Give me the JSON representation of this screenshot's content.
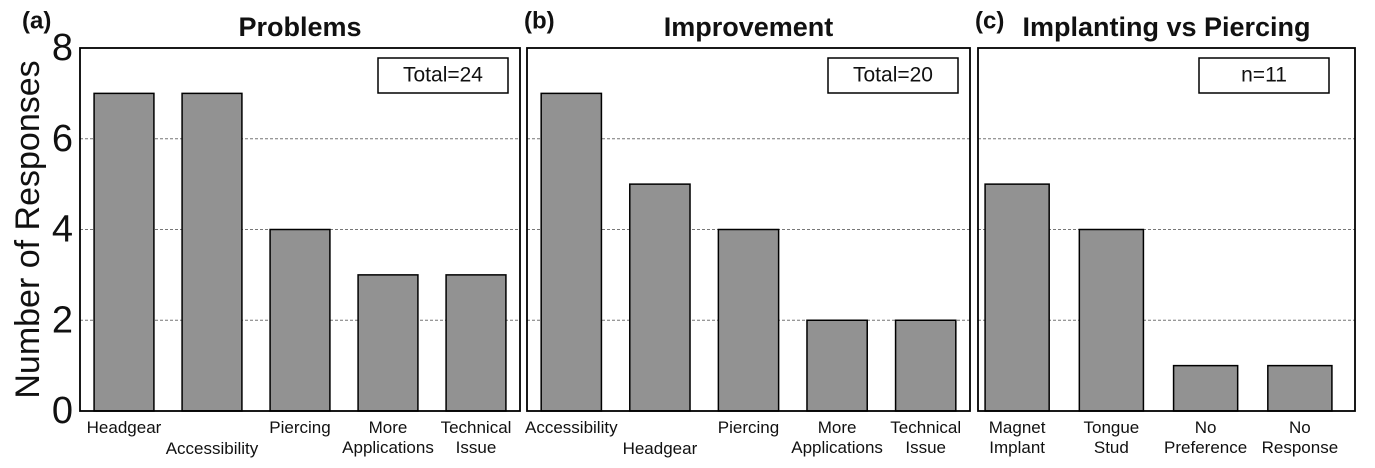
{
  "chart_data": [
    {
      "type": "bar",
      "panel_label": "(a)",
      "title": "Problems",
      "annotation": "Total=24",
      "ylabel": "Number of Responses",
      "categories": [
        "Headgear",
        "Accessibility",
        "Piercing",
        "More Applications",
        "Technical Issue"
      ],
      "values": [
        7,
        7,
        4,
        3,
        3
      ],
      "color": "#929292",
      "ylim": [
        0,
        8
      ],
      "yticks": [
        0,
        2,
        4,
        6,
        8
      ],
      "grid": true
    },
    {
      "type": "bar",
      "panel_label": "(b)",
      "title": "Improvement",
      "annotation": "Total=20",
      "categories": [
        "Accessibility",
        "Headgear",
        "Piercing",
        "More Applications",
        "Technical Issue"
      ],
      "values": [
        7,
        5,
        4,
        2,
        2
      ],
      "color": "#929292",
      "ylim": [
        0,
        8
      ],
      "yticks": [
        0,
        2,
        4,
        6,
        8
      ],
      "grid": true
    },
    {
      "type": "bar",
      "panel_label": "(c)",
      "title": "Implanting vs Piercing",
      "annotation": "n=11",
      "categories": [
        "Magnet Implant",
        "Tongue Stud",
        "No Preference",
        "No Response"
      ],
      "values": [
        5,
        4,
        1,
        1
      ],
      "color": "#929292",
      "ylim": [
        0,
        8
      ],
      "yticks": [
        0,
        2,
        4,
        6,
        8
      ],
      "grid": true
    }
  ]
}
